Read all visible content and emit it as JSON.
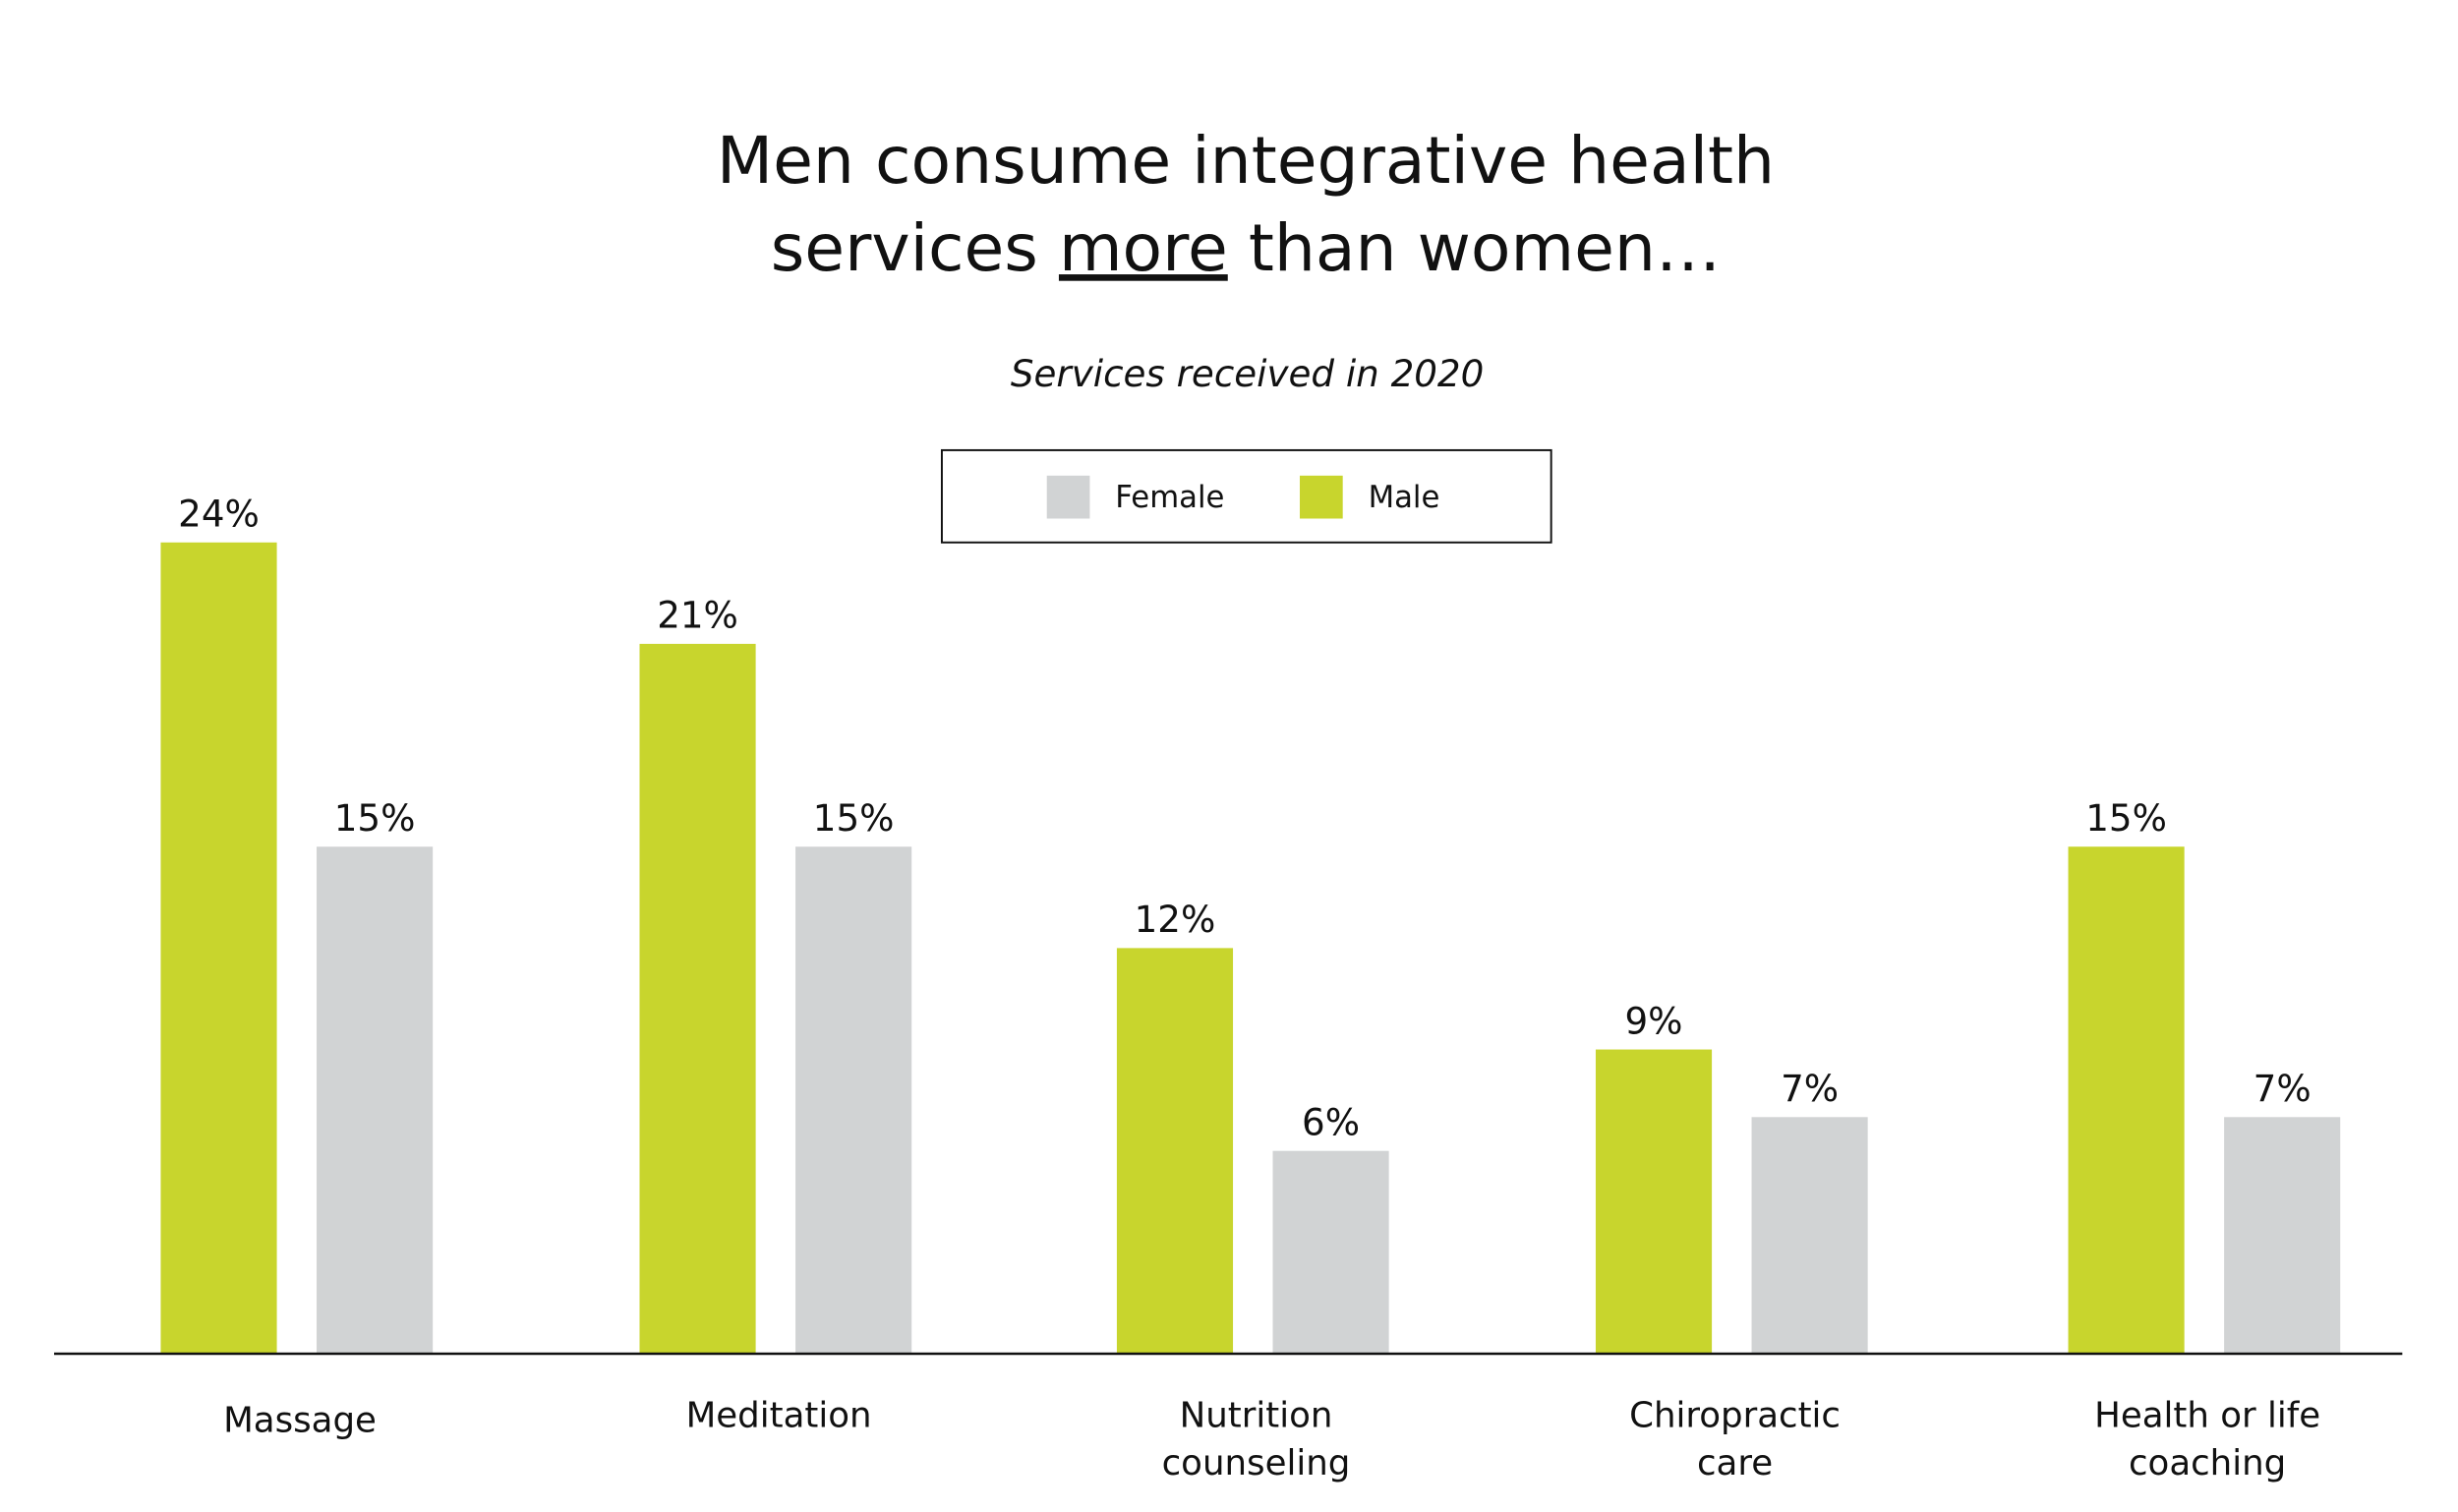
{
  "chart_data": {
    "type": "bar",
    "title_line1": "Men consume integrative health",
    "title_line2_pre": "services ",
    "title_line2_emph": "more",
    "title_line2_post": " than women…",
    "subtitle": "Services received in 2020",
    "categories": [
      [
        "Massage"
      ],
      [
        "Meditation"
      ],
      [
        "Nutrition",
        "counseling"
      ],
      [
        "Chiropractic",
        "care"
      ],
      [
        "Health or life",
        "coaching"
      ]
    ],
    "series": [
      {
        "name": "Male",
        "color": "#C8D52D",
        "values": [
          24,
          21,
          12,
          9,
          15
        ],
        "labels": [
          "24%",
          "21%",
          "12%",
          "9%",
          "15%"
        ]
      },
      {
        "name": "Female",
        "color": "#D1D3D4",
        "values": [
          15,
          15,
          6,
          7,
          7
        ],
        "labels": [
          "15%",
          "15%",
          "6%",
          "7%",
          "7%"
        ]
      }
    ],
    "legend": [
      {
        "name": "Female",
        "color": "#D1D3D4"
      },
      {
        "name": "Male",
        "color": "#C8D52D"
      }
    ],
    "legend_position": "top-center",
    "ylim": [
      0,
      25
    ],
    "grid": false,
    "xlabel": "",
    "ylabel": ""
  }
}
